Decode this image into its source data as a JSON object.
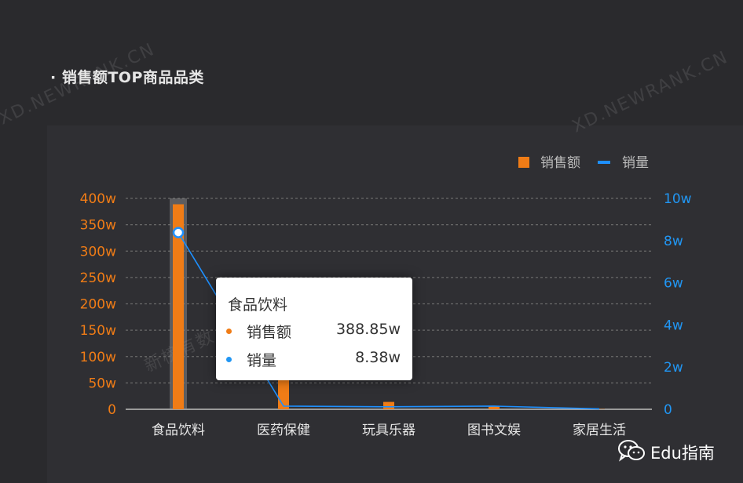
{
  "header": {
    "title": "· 销售额TOP商品品类"
  },
  "watermark": {
    "text": "XD.NEWRANK.CN",
    "cn_text": "新榜有数"
  },
  "colors": {
    "sales": "#f07c16",
    "volume": "#1e90ff",
    "axis_left": "#f07c16",
    "axis_right": "#2196f3",
    "grid": "#6a6a6a"
  },
  "chart_data": {
    "type": "bar",
    "categories": [
      "食品饮料",
      "医药保健",
      "玩具乐器",
      "图书文娱",
      "家居生活"
    ],
    "series": [
      {
        "name": "销售额",
        "type": "bar",
        "axis": "left",
        "values": [
          388.85,
          55,
          14,
          6,
          0.5
        ]
      },
      {
        "name": "销量",
        "type": "line",
        "axis": "right",
        "values": [
          8.38,
          0.15,
          0.12,
          0.15,
          0.02
        ]
      }
    ],
    "y_left": {
      "ticks": [
        "0",
        "50w",
        "100w",
        "150w",
        "200w",
        "250w",
        "300w",
        "350w",
        "400w"
      ],
      "range": [
        0,
        400
      ],
      "unit": "w"
    },
    "y_right": {
      "ticks": [
        "0",
        "2w",
        "4w",
        "6w",
        "8w",
        "10w"
      ],
      "range": [
        0,
        10
      ],
      "unit": "w"
    },
    "legend": {
      "position": "top-right",
      "items": [
        {
          "label": "销售额",
          "symbol": "square"
        },
        {
          "label": "销量",
          "symbol": "line"
        }
      ]
    },
    "grid": true,
    "highlighted_category": "食品饮料"
  },
  "tooltip": {
    "title": "食品饮料",
    "rows": [
      {
        "name": "销售额",
        "value": "388.85w"
      },
      {
        "name": "销量",
        "value": "8.38w"
      }
    ]
  },
  "footer": {
    "wechat_label": "Edu指南",
    "icon": "wechat-icon"
  }
}
